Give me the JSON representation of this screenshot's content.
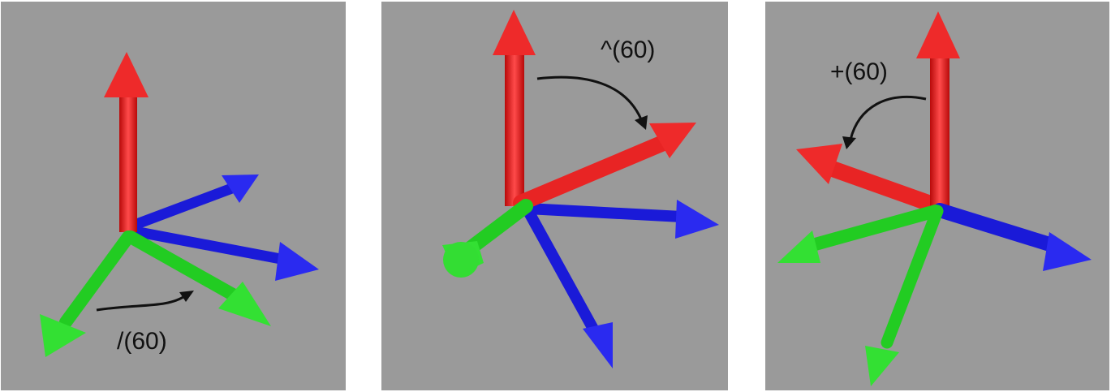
{
  "colors": {
    "background": "#9a9a9a",
    "x_axis": "#ee2020",
    "y_axis": "#20d820",
    "z_axis": "#2020e8",
    "annotation": "#111111"
  },
  "panels": [
    {
      "label": "/(60)"
    },
    {
      "label": "^(60)"
    },
    {
      "label": "+(60)"
    }
  ]
}
